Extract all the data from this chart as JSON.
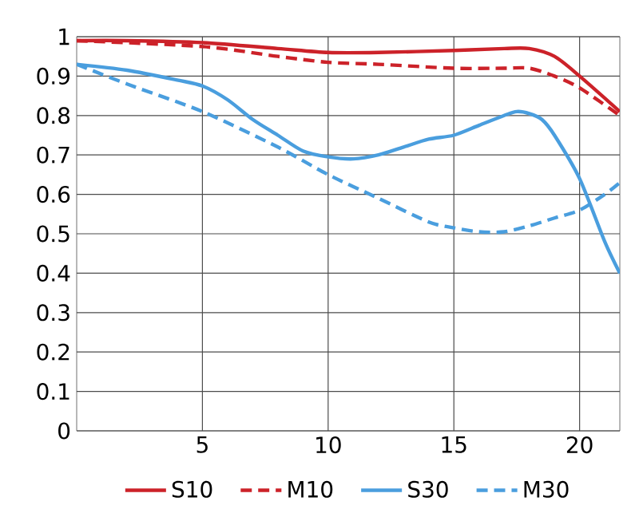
{
  "chart_data": {
    "type": "line",
    "xlim": [
      0,
      21.6
    ],
    "ylim": [
      0,
      1
    ],
    "xticks": [
      5,
      10,
      15,
      20
    ],
    "yticks": [
      0,
      0.1,
      0.2,
      0.3,
      0.4,
      0.5,
      0.6,
      0.7,
      0.8,
      0.9,
      1
    ],
    "grid": true,
    "legend": "bottom",
    "marker": "none",
    "series": [
      {
        "name": "S10",
        "color": "#cc2229",
        "line_style": "solid",
        "x": [
          0,
          2,
          5,
          8,
          10,
          12,
          15,
          17,
          18,
          19,
          20,
          21.6
        ],
        "values": [
          0.99,
          0.99,
          0.985,
          0.97,
          0.96,
          0.96,
          0.965,
          0.97,
          0.97,
          0.95,
          0.9,
          0.81
        ]
      },
      {
        "name": "M10",
        "color": "#cc2229",
        "line_style": "dashed",
        "x": [
          0,
          5,
          8,
          10,
          12,
          15,
          17,
          18,
          19,
          20,
          21.6
        ],
        "values": [
          0.99,
          0.975,
          0.95,
          0.935,
          0.93,
          0.92,
          0.92,
          0.92,
          0.9,
          0.87,
          0.8
        ]
      },
      {
        "name": "S30",
        "color": "#4a9ede",
        "line_style": "solid",
        "x": [
          0,
          2,
          4,
          5,
          6,
          7,
          8,
          9,
          10,
          11,
          12,
          13,
          14,
          15,
          16,
          17,
          17.5,
          18,
          18.5,
          19,
          20,
          21,
          21.6
        ],
        "values": [
          0.93,
          0.915,
          0.89,
          0.875,
          0.84,
          0.79,
          0.75,
          0.71,
          0.695,
          0.69,
          0.7,
          0.72,
          0.74,
          0.75,
          0.775,
          0.8,
          0.81,
          0.805,
          0.79,
          0.75,
          0.64,
          0.48,
          0.4
        ]
      },
      {
        "name": "M30",
        "color": "#4a9ede",
        "line_style": "dashed",
        "x": [
          0,
          2,
          5,
          8,
          10,
          12,
          14,
          15,
          16,
          17,
          18,
          19,
          20,
          21,
          21.6
        ],
        "values": [
          0.93,
          0.88,
          0.81,
          0.72,
          0.65,
          0.59,
          0.53,
          0.515,
          0.505,
          0.505,
          0.52,
          0.54,
          0.56,
          0.6,
          0.63
        ]
      }
    ]
  }
}
